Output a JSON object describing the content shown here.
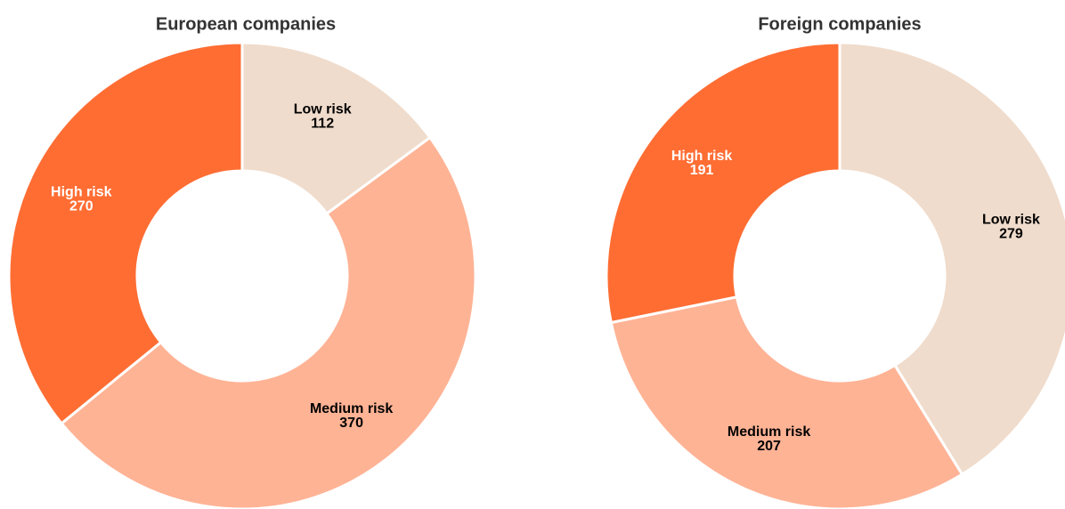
{
  "chart_data": [
    {
      "type": "pie",
      "title": "European companies",
      "categories": [
        "Low risk",
        "Medium risk",
        "High risk"
      ],
      "values": [
        112,
        370,
        270
      ],
      "colors": [
        "#f0dccc",
        "#ffb395",
        "#ff6d33"
      ],
      "label_colors": [
        "#000000",
        "#000000",
        "#ffffff"
      ]
    },
    {
      "type": "pie",
      "title": "Foreign companies",
      "categories": [
        "Low risk",
        "Medium risk",
        "High risk"
      ],
      "values": [
        279,
        207,
        191
      ],
      "colors": [
        "#f0dccc",
        "#ffb395",
        "#ff6d33"
      ],
      "label_colors": [
        "#000000",
        "#000000",
        "#ffffff"
      ]
    }
  ]
}
